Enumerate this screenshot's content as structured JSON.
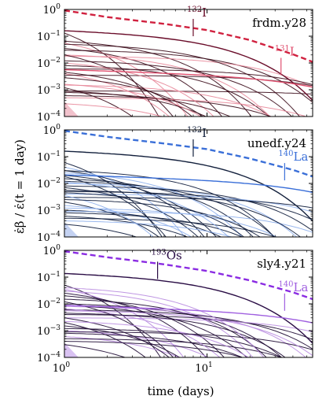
{
  "figure": {
    "ylabel": "ε̇β / ε̇(t = 1 day)",
    "xlabel": "time (days)"
  },
  "chart_data": [
    {
      "type": "line",
      "panel_label": "frdm.y28",
      "xscale": "log",
      "yscale": "log",
      "xlim": [
        1,
        55
      ],
      "ylim": [
        0.0001,
        1
      ],
      "xticks": [
        "10^0",
        "10^1"
      ],
      "yticks": [
        "10^-4",
        "10^-3",
        "10^-2",
        "10^-1",
        "10^0"
      ],
      "total_color": "#d0213f",
      "dark_color": "#3a0a18",
      "light_color": "#e8889a",
      "shade_color": "#f2c2cc",
      "total": {
        "x": [
          1,
          2,
          5,
          10,
          20,
          40,
          55
        ],
        "y": [
          0.92,
          0.52,
          0.29,
          0.17,
          0.072,
          0.021,
          0.011
        ]
      },
      "annotations": [
        {
          "text": "132",
          "suffix": "I",
          "x": 8,
          "y": 0.1,
          "color": "#6a0d2a"
        },
        {
          "text": "131",
          "suffix": "I",
          "x": 33,
          "y": 0.0035,
          "color": "#e0506f"
        }
      ],
      "series": [
        {
          "A": 0.13,
          "tau": 0.5
        },
        {
          "A": 0.055,
          "tau": 1.0
        },
        {
          "A": 0.035,
          "tau": 2.0
        },
        {
          "A": 0.065,
          "tau": 3.0
        },
        {
          "A": 0.02,
          "tau": 5.0
        },
        {
          "A": 0.012,
          "tau": 8.0
        },
        {
          "A": 0.03,
          "tau": 12.0
        },
        {
          "A": 0.018,
          "tau": 20.0
        },
        {
          "A": 0.006,
          "tau": 40.0
        },
        {
          "A": 0.0009,
          "tau": 200.0
        },
        {
          "A": 0.004,
          "tau": 1.2
        },
        {
          "A": 0.0028,
          "tau": 2.5
        },
        {
          "A": 0.008,
          "tau": 6.0
        },
        {
          "A": 0.0015,
          "tau": 10.0
        },
        {
          "A": 0.0009,
          "tau": 4.0
        },
        {
          "A": 0.0006,
          "tau": 15.0
        },
        {
          "A": 0.0005,
          "tau": 30.0
        },
        {
          "A": 0.0045,
          "tau": 1.8
        },
        {
          "A": 0.0012,
          "tau": 0.8
        },
        {
          "A": 0.0003,
          "tau": 3.5
        },
        {
          "A": 0.0035,
          "tau": 60.0
        },
        {
          "A": 0.02,
          "tau": 0.9
        },
        {
          "A": 0.01,
          "tau": 2.2
        },
        {
          "A": 0.05,
          "tau": 7.0
        },
        {
          "A": 0.0008,
          "tau": 6.5
        },
        {
          "A": 0.0016,
          "tau": 2.9
        }
      ]
    },
    {
      "type": "line",
      "panel_label": "unedf.y24",
      "xscale": "log",
      "yscale": "log",
      "xlim": [
        1,
        55
      ],
      "ylim": [
        0.0001,
        1
      ],
      "xticks": [
        "10^0",
        "10^1"
      ],
      "yticks": [
        "10^-4",
        "10^-3",
        "10^-2",
        "10^-1",
        "10^0"
      ],
      "total_color": "#3a6fd8",
      "dark_color": "#0c1a3a",
      "light_color": "#8fb0ec",
      "shade_color": "#c4d2f2",
      "total": {
        "x": [
          1,
          2,
          5,
          10,
          20,
          40,
          55
        ],
        "y": [
          0.92,
          0.55,
          0.31,
          0.19,
          0.085,
          0.032,
          0.018
        ]
      },
      "annotations": [
        {
          "text": "132",
          "suffix": "I",
          "x": 8,
          "y": 0.1,
          "color": "#14213d"
        },
        {
          "text": "140",
          "suffix": "La",
          "x": 35,
          "y": 0.013,
          "color": "#3a6fd8"
        }
      ],
      "series": [
        {
          "A": 0.06,
          "tau": 0.6
        },
        {
          "A": 0.04,
          "tau": 1.0
        },
        {
          "A": 0.03,
          "tau": 1.5
        },
        {
          "A": 0.02,
          "tau": 2.0
        },
        {
          "A": 0.025,
          "tau": 3.0
        },
        {
          "A": 0.015,
          "tau": 4.0
        },
        {
          "A": 0.012,
          "tau": 6.0
        },
        {
          "A": 0.01,
          "tau": 9.0
        },
        {
          "A": 0.008,
          "tau": 14.0
        },
        {
          "A": 0.005,
          "tau": 22.0
        },
        {
          "A": 0.004,
          "tau": 35.0
        },
        {
          "A": 0.003,
          "tau": 60.0
        },
        {
          "A": 0.002,
          "tau": 1.2
        },
        {
          "A": 0.0015,
          "tau": 2.5
        },
        {
          "A": 0.001,
          "tau": 5.0
        },
        {
          "A": 0.0008,
          "tau": 8.0
        },
        {
          "A": 0.0012,
          "tau": 12.0
        },
        {
          "A": 0.0006,
          "tau": 3.5
        },
        {
          "A": 0.0005,
          "tau": 18.0
        },
        {
          "A": 0.0035,
          "tau": 0.9
        },
        {
          "A": 0.007,
          "tau": 1.8
        },
        {
          "A": 0.018,
          "tau": 0.8
        },
        {
          "A": 0.011,
          "tau": 2.8
        },
        {
          "A": 0.0025,
          "tau": 7.0
        },
        {
          "A": 0.0045,
          "tau": 4.5
        },
        {
          "A": 0.0009,
          "tau": 30.0
        },
        {
          "A": 0.03,
          "tau": 5.0
        },
        {
          "A": 0.0003,
          "tau": 2.0
        },
        {
          "A": 0.0004,
          "tau": 10.0
        },
        {
          "A": 0.0055,
          "tau": 11.0
        }
      ]
    },
    {
      "type": "line",
      "panel_label": "sly4.y21",
      "xscale": "log",
      "yscale": "log",
      "xlim": [
        1,
        55
      ],
      "ylim": [
        0.0001,
        1
      ],
      "xticks": [
        "10^0",
        "10^1"
      ],
      "yticks": [
        "10^-4",
        "10^-3",
        "10^-2",
        "10^-1",
        "10^0"
      ],
      "total_color": "#8a2be2",
      "dark_color": "#1e0a33",
      "light_color": "#b98ce0",
      "shade_color": "#d9c2f2",
      "total": {
        "x": [
          1,
          2,
          5,
          10,
          20,
          40,
          55
        ],
        "y": [
          0.92,
          0.55,
          0.3,
          0.17,
          0.075,
          0.027,
          0.015
        ]
      },
      "annotations": [
        {
          "text": "193",
          "suffix": "Os",
          "x": 4.5,
          "y": 0.085,
          "color": "#2a0d45"
        },
        {
          "text": "140",
          "suffix": "La",
          "x": 35,
          "y": 0.0055,
          "color": "#a060e0"
        }
      ],
      "series": [
        {
          "A": 0.05,
          "tau": 0.6
        },
        {
          "A": 0.035,
          "tau": 1.0
        },
        {
          "A": 0.025,
          "tau": 1.6
        },
        {
          "A": 0.02,
          "tau": 2.3
        },
        {
          "A": 0.03,
          "tau": 3.5
        },
        {
          "A": 0.015,
          "tau": 5.0
        },
        {
          "A": 0.01,
          "tau": 7.0
        },
        {
          "A": 0.008,
          "tau": 11.0
        },
        {
          "A": 0.006,
          "tau": 16.0
        },
        {
          "A": 0.004,
          "tau": 25.0
        },
        {
          "A": 0.003,
          "tau": 45.0
        },
        {
          "A": 0.002,
          "tau": 0.9
        },
        {
          "A": 0.0015,
          "tau": 2.0
        },
        {
          "A": 0.001,
          "tau": 4.0
        },
        {
          "A": 0.0008,
          "tau": 8.0
        },
        {
          "A": 0.0012,
          "tau": 13.0
        },
        {
          "A": 0.0006,
          "tau": 3.0
        },
        {
          "A": 0.0005,
          "tau": 20.0
        },
        {
          "A": 0.003,
          "tau": 1.3
        },
        {
          "A": 0.0065,
          "tau": 2.7
        },
        {
          "A": 0.012,
          "tau": 1.0
        },
        {
          "A": 0.009,
          "tau": 4.0
        },
        {
          "A": 0.0022,
          "tau": 6.0
        },
        {
          "A": 0.0045,
          "tau": 9.0
        },
        {
          "A": 0.0009,
          "tau": 35.0
        },
        {
          "A": 0.04,
          "tau": 4.0
        },
        {
          "A": 0.0003,
          "tau": 1.5
        },
        {
          "A": 0.0004,
          "tau": 12.0
        },
        {
          "A": 0.0055,
          "tau": 14.0
        }
      ]
    }
  ]
}
